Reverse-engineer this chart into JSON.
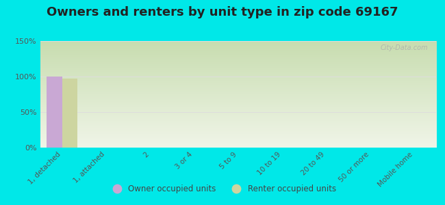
{
  "title": "Owners and renters by unit type in zip code 69167",
  "categories": [
    "1, detached",
    "1, attached",
    "2",
    "3 or 4",
    "5 to 9",
    "10 to 19",
    "20 to 49",
    "50 or more",
    "Mobile home"
  ],
  "owner_values": [
    100,
    0,
    0,
    0,
    0,
    0,
    0,
    0,
    0
  ],
  "renter_values": [
    97,
    0,
    0,
    0,
    0,
    0,
    0,
    0,
    0
  ],
  "owner_color": "#c9a8d4",
  "renter_color": "#cdd5a0",
  "background_outer": "#00e8e8",
  "grad_top": "#c8ddb0",
  "grad_bottom": "#f0f5e8",
  "bar_width": 0.35,
  "ylim": [
    0,
    150
  ],
  "yticks": [
    0,
    50,
    100,
    150
  ],
  "legend_owner": "Owner occupied units",
  "legend_renter": "Renter occupied units",
  "watermark": "City-Data.com",
  "title_fontsize": 13,
  "tick_label_fontsize": 7.5,
  "ytick_fontsize": 8
}
